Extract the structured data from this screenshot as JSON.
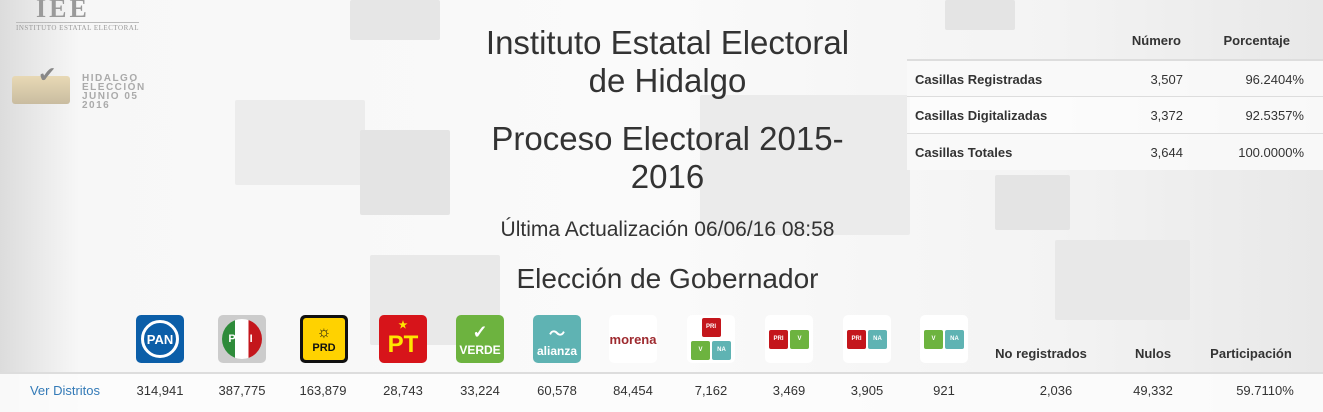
{
  "header": {
    "logo_iee": "IEE",
    "logo_iee_sub": "INSTITUTO ESTATAL ELECTORAL",
    "logo_hidalgo": [
      "HIDALGO",
      "ELECCIÓN",
      "JUNIO 05 2016"
    ],
    "title_line1": "Instituto Estatal Electoral",
    "title_line2": "de Hidalgo",
    "process_line1": "Proceso Electoral 2015-",
    "process_line2": "2016",
    "last_update": "Última Actualización 06/06/16 08:58",
    "election": "Elección de Gobernador"
  },
  "stats": {
    "headers": [
      "Número",
      "Porcentaje"
    ],
    "rows": [
      {
        "label": "Casillas Registradas",
        "number": "3,507",
        "percent": "96.2404%"
      },
      {
        "label": "Casillas Digitalizadas",
        "number": "3,372",
        "percent": "92.5357%"
      },
      {
        "label": "Casillas Totales",
        "number": "3,644",
        "percent": "100.0000%"
      }
    ]
  },
  "results": {
    "link": "Ver Distritos",
    "parties": [
      {
        "name": "PAN",
        "votes": "314,941",
        "color": "#0b5ea8"
      },
      {
        "name": "PRI",
        "votes": "387,775",
        "color": "#c4161c"
      },
      {
        "name": "PRD",
        "votes": "163,879",
        "color": "#ffd200"
      },
      {
        "name": "PT",
        "votes": "28,743",
        "color": "#d7141a"
      },
      {
        "name": "VERDE",
        "votes": "33,224",
        "color": "#6db33f"
      },
      {
        "name": "alianza",
        "votes": "60,578",
        "color": "#5fb3b3"
      },
      {
        "name": "morena",
        "votes": "84,454",
        "color": "#9e2a2f"
      },
      {
        "name": "PRI-VERDE-alianza",
        "votes": "7,162"
      },
      {
        "name": "PRI-VERDE",
        "votes": "3,469"
      },
      {
        "name": "PRI-alianza",
        "votes": "3,905"
      },
      {
        "name": "VERDE-alianza",
        "votes": "921"
      }
    ],
    "no_registrados": {
      "label": "No registrados",
      "value": "2,036"
    },
    "nulos": {
      "label": "Nulos",
      "value": "49,332"
    },
    "participacion": {
      "label": "Participación",
      "value": "59.7110%"
    }
  }
}
